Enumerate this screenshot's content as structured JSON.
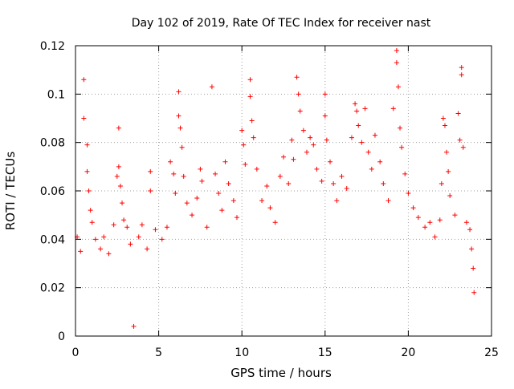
{
  "chart_data": {
    "type": "scatter",
    "title": "Day 102 of 2019, Rate Of TEC Index for receiver nast",
    "xlabel": "GPS time / hours",
    "ylabel": "ROTI / TECUs",
    "xlim": [
      0,
      25
    ],
    "ylim": [
      0,
      0.12
    ],
    "x_ticks": [
      0,
      5,
      10,
      15,
      20,
      25
    ],
    "x_tick_labels": [
      "0",
      "5",
      "10",
      "15",
      "20",
      "25"
    ],
    "y_ticks": [
      0,
      0.02,
      0.04,
      0.06,
      0.08,
      0.1,
      0.12
    ],
    "y_tick_labels": [
      "0",
      "0.02",
      "0.04",
      "0.06",
      "0.08",
      "0.1",
      "0.12"
    ],
    "grid": true,
    "grid_style": "dotted",
    "marker": "plus",
    "series": [
      {
        "color": "#ff0000",
        "points": [
          [
            0.1,
            0.041
          ],
          [
            0.3,
            0.035
          ],
          [
            0.5,
            0.106
          ],
          [
            0.5,
            0.09
          ],
          [
            0.7,
            0.079
          ],
          [
            0.7,
            0.068
          ],
          [
            0.8,
            0.06
          ],
          [
            0.9,
            0.052
          ],
          [
            1.0,
            0.047
          ],
          [
            1.2,
            0.04
          ],
          [
            1.5,
            0.036
          ],
          [
            1.7,
            0.041
          ],
          [
            2.0,
            0.034
          ],
          [
            2.3,
            0.046
          ],
          [
            2.5,
            0.066
          ],
          [
            2.6,
            0.086
          ],
          [
            2.6,
            0.07
          ],
          [
            2.7,
            0.062
          ],
          [
            2.8,
            0.055
          ],
          [
            2.9,
            0.048
          ],
          [
            3.1,
            0.045
          ],
          [
            3.3,
            0.038
          ],
          [
            3.5,
            0.004
          ],
          [
            3.8,
            0.041
          ],
          [
            4.0,
            0.046
          ],
          [
            4.3,
            0.036
          ],
          [
            4.5,
            0.068
          ],
          [
            4.5,
            0.06
          ],
          [
            4.8,
            0.044
          ],
          [
            5.2,
            0.04
          ],
          [
            5.5,
            0.045
          ],
          [
            5.7,
            0.072
          ],
          [
            5.9,
            0.067
          ],
          [
            6.0,
            0.059
          ],
          [
            6.2,
            0.101
          ],
          [
            6.2,
            0.091
          ],
          [
            6.3,
            0.086
          ],
          [
            6.4,
            0.078
          ],
          [
            6.5,
            0.066
          ],
          [
            6.7,
            0.055
          ],
          [
            7.0,
            0.05
          ],
          [
            7.3,
            0.057
          ],
          [
            7.5,
            0.069
          ],
          [
            7.6,
            0.064
          ],
          [
            7.9,
            0.045
          ],
          [
            8.2,
            0.103
          ],
          [
            8.4,
            0.067
          ],
          [
            8.6,
            0.059
          ],
          [
            8.8,
            0.052
          ],
          [
            9.0,
            0.072
          ],
          [
            9.2,
            0.063
          ],
          [
            9.5,
            0.056
          ],
          [
            9.7,
            0.049
          ],
          [
            10.0,
            0.085
          ],
          [
            10.1,
            0.079
          ],
          [
            10.2,
            0.071
          ],
          [
            10.5,
            0.106
          ],
          [
            10.5,
            0.099
          ],
          [
            10.6,
            0.089
          ],
          [
            10.7,
            0.082
          ],
          [
            10.9,
            0.069
          ],
          [
            11.2,
            0.056
          ],
          [
            11.5,
            0.062
          ],
          [
            11.7,
            0.053
          ],
          [
            12.0,
            0.047
          ],
          [
            12.3,
            0.066
          ],
          [
            12.5,
            0.074
          ],
          [
            12.8,
            0.063
          ],
          [
            13.0,
            0.081
          ],
          [
            13.1,
            0.073
          ],
          [
            13.3,
            0.107
          ],
          [
            13.4,
            0.1
          ],
          [
            13.5,
            0.093
          ],
          [
            13.7,
            0.085
          ],
          [
            13.9,
            0.076
          ],
          [
            14.1,
            0.082
          ],
          [
            14.3,
            0.079
          ],
          [
            14.5,
            0.069
          ],
          [
            14.8,
            0.064
          ],
          [
            15.0,
            0.1
          ],
          [
            15.0,
            0.091
          ],
          [
            15.1,
            0.081
          ],
          [
            15.3,
            0.072
          ],
          [
            15.5,
            0.063
          ],
          [
            15.7,
            0.056
          ],
          [
            16.0,
            0.066
          ],
          [
            16.3,
            0.061
          ],
          [
            16.6,
            0.082
          ],
          [
            16.8,
            0.096
          ],
          [
            16.9,
            0.093
          ],
          [
            17.0,
            0.087
          ],
          [
            17.2,
            0.08
          ],
          [
            17.4,
            0.094
          ],
          [
            17.6,
            0.076
          ],
          [
            17.8,
            0.069
          ],
          [
            18.0,
            0.083
          ],
          [
            18.3,
            0.072
          ],
          [
            18.5,
            0.063
          ],
          [
            18.8,
            0.056
          ],
          [
            19.1,
            0.094
          ],
          [
            19.3,
            0.118
          ],
          [
            19.3,
            0.113
          ],
          [
            19.4,
            0.103
          ],
          [
            19.5,
            0.086
          ],
          [
            19.6,
            0.078
          ],
          [
            19.8,
            0.067
          ],
          [
            20.0,
            0.059
          ],
          [
            20.3,
            0.053
          ],
          [
            20.6,
            0.049
          ],
          [
            21.0,
            0.045
          ],
          [
            21.3,
            0.047
          ],
          [
            21.6,
            0.041
          ],
          [
            21.9,
            0.048
          ],
          [
            22.0,
            0.063
          ],
          [
            22.1,
            0.09
          ],
          [
            22.2,
            0.087
          ],
          [
            22.3,
            0.076
          ],
          [
            22.4,
            0.068
          ],
          [
            22.5,
            0.058
          ],
          [
            22.8,
            0.05
          ],
          [
            23.0,
            0.092
          ],
          [
            23.1,
            0.081
          ],
          [
            23.2,
            0.111
          ],
          [
            23.2,
            0.108
          ],
          [
            23.3,
            0.078
          ],
          [
            23.5,
            0.047
          ],
          [
            23.7,
            0.044
          ],
          [
            23.8,
            0.036
          ],
          [
            23.9,
            0.028
          ],
          [
            23.95,
            0.018
          ]
        ]
      }
    ]
  }
}
